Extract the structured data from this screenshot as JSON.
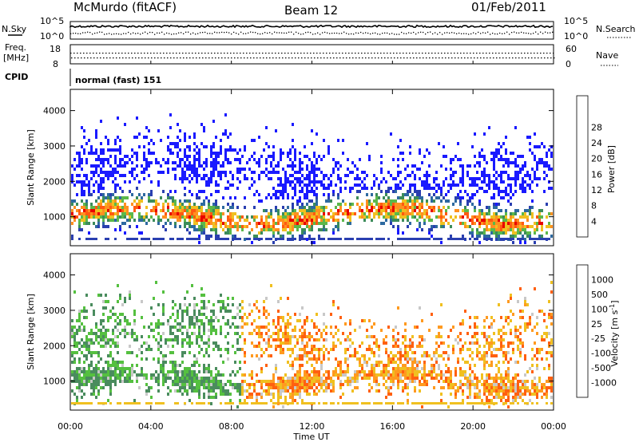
{
  "header": {
    "station": "McMurdo (fitACF)",
    "beam": "Beam 12",
    "date": "01/Feb/2011"
  },
  "noise_panel": {
    "left_label": "N.Sky",
    "left_ticks": [
      "10^5",
      "10^0"
    ],
    "right_label": "N.Search",
    "right_ticks": [
      "10^5",
      "10^0"
    ]
  },
  "freq_panel": {
    "left_label_line1": "Freq.",
    "left_label_line2": "[MHz]",
    "left_ticks": [
      "18",
      "8"
    ],
    "right_label": "Nave",
    "right_ticks": [
      "60",
      "0"
    ]
  },
  "cpid": {
    "label": "CPID",
    "value": "normal (fast) 151"
  },
  "colors": {
    "power_scale": [
      "#1a1aff",
      "#2a3fb0",
      "#2e6aa0",
      "#3c8c5a",
      "#5cb84a",
      "#f0c020",
      "#ff9020",
      "#ff5a10",
      "#e80000"
    ],
    "velocity_scale": [
      "#2244aa",
      "#3a6aa8",
      "#4a8c5e",
      "#55c040",
      "#c8c8c8",
      "#f0c020",
      "#ff9a20",
      "#ff6010",
      "#e80000"
    ]
  },
  "chart_data": [
    {
      "type": "heatmap",
      "title": "Power",
      "xlabel": "Time UT",
      "ylabel": "Slant Range [km]",
      "x_ticks": [
        "00:00",
        "04:00",
        "08:00",
        "12:00",
        "16:00",
        "20:00",
        "00:00"
      ],
      "xlim": [
        0,
        24
      ],
      "y_ticks": [
        1000,
        2000,
        3000,
        4000
      ],
      "ylim": [
        180,
        4600
      ],
      "colorbar": {
        "label": "Power [dB]",
        "ticks": [
          "4",
          "8",
          "12",
          "16",
          "20",
          "24",
          "28"
        ],
        "range": [
          0,
          32
        ]
      }
    },
    {
      "type": "heatmap",
      "title": "Velocity",
      "xlabel": "Time UT",
      "ylabel": "Slant Range [km]",
      "x_ticks": [
        "00:00",
        "04:00",
        "08:00",
        "12:00",
        "16:00",
        "20:00",
        "00:00"
      ],
      "xlim": [
        0,
        24
      ],
      "y_ticks": [
        1000,
        2000,
        3000,
        4000
      ],
      "ylim": [
        180,
        4600
      ],
      "colorbar": {
        "label": "Velocity [m s",
        "label_sup": "-1",
        "label_end": "]",
        "ticks": [
          "1000",
          "500",
          "100",
          "25",
          "-25",
          "-100",
          "-500",
          "-1000"
        ]
      }
    }
  ]
}
